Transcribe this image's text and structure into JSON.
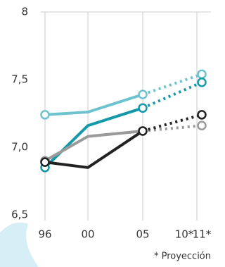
{
  "chart_data": {
    "type": "line",
    "categories": [
      "96",
      "00",
      "05",
      "10*",
      "11*"
    ],
    "series": [
      {
        "color": "#6cc3cd",
        "values": [
          7.24,
          7.26,
          7.39,
          null,
          7.54
        ]
      },
      {
        "color": "#1599a8",
        "values": [
          6.85,
          7.16,
          7.29,
          null,
          7.48
        ]
      },
      {
        "color": "#9a9a9a",
        "values": [
          6.9,
          7.08,
          7.12,
          null,
          7.16
        ]
      },
      {
        "color": "#222222",
        "values": [
          6.89,
          6.85,
          7.12,
          null,
          7.24
        ]
      }
    ],
    "projection_start": 2,
    "ylim": [
      6.5,
      8
    ],
    "yticks": [
      {
        "value": 6.5,
        "label": "6,5"
      },
      {
        "value": 7,
        "label": "7,0"
      },
      {
        "value": 7.5,
        "label": "7,5"
      },
      8
    ],
    "grid": true,
    "footnote": "* Proyección"
  }
}
